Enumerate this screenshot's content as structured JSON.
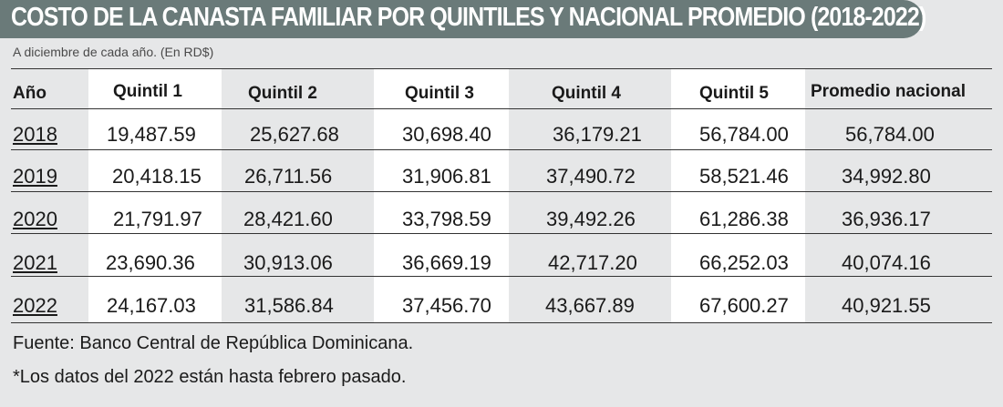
{
  "title": "COSTO DE LA CANASTA FAMILIAR POR QUINTILES Y NACIONAL PROMEDIO (2018-2022)",
  "subtitle": "A diciembre de cada año. (En RD$)",
  "headers": [
    "Año",
    "Quintil 1",
    "Quintil 2",
    "Quintil 3",
    "Quintil 4",
    "Quintil 5",
    "Promedio nacional"
  ],
  "rows": [
    {
      "year": "2018",
      "values": [
        "19,487.59",
        "25,627.68",
        "30,698.40",
        "36,179.21",
        "56,784.00",
        "56,784.00"
      ]
    },
    {
      "year": "2019",
      "values": [
        "20,418.15",
        "26,711.56",
        "31,906.81",
        "37,490.72",
        "58,521.46",
        "34,992.80"
      ]
    },
    {
      "year": "2020",
      "values": [
        "21,791.97",
        "28,421.60",
        "33,798.59",
        "39,492.26",
        "61,286.38",
        "36,936.17"
      ]
    },
    {
      "year": "2021",
      "values": [
        "23,690.36",
        "30,913.06",
        "36,669.19",
        "42,717.20",
        "66,252.03",
        "40,074.16"
      ]
    },
    {
      "year": "2022",
      "values": [
        "24,167.03",
        "31,586.84",
        "37,456.70",
        "43,667.89",
        "67,600.27",
        "40,921.55"
      ]
    }
  ],
  "footnotes": {
    "source": "Fuente: Banco Central de República Dominicana.",
    "note": "*Los datos del 2022 están hasta febrero pasado."
  },
  "colors": {
    "title_bar": "#6a7a79",
    "panel": "#e6e7e8",
    "column_highlight": "#ffffff"
  }
}
